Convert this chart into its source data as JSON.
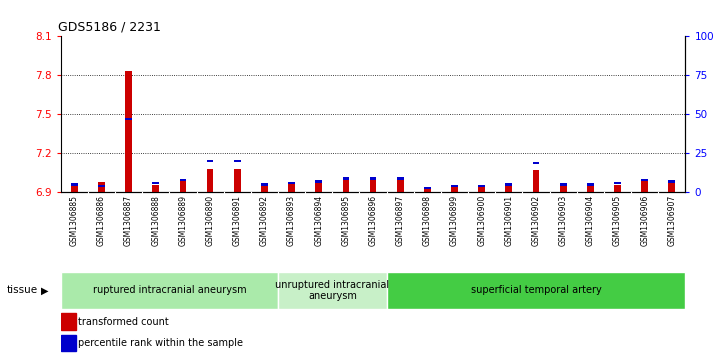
{
  "title": "GDS5186 / 2231",
  "samples": [
    "GSM1306885",
    "GSM1306886",
    "GSM1306887",
    "GSM1306888",
    "GSM1306889",
    "GSM1306890",
    "GSM1306891",
    "GSM1306892",
    "GSM1306893",
    "GSM1306894",
    "GSM1306895",
    "GSM1306896",
    "GSM1306897",
    "GSM1306898",
    "GSM1306899",
    "GSM1306900",
    "GSM1306901",
    "GSM1306902",
    "GSM1306903",
    "GSM1306904",
    "GSM1306905",
    "GSM1306906",
    "GSM1306907"
  ],
  "red_values": [
    6.97,
    6.98,
    7.83,
    6.96,
    6.99,
    7.08,
    7.08,
    6.96,
    6.97,
    6.98,
    7.0,
    7.01,
    7.0,
    6.93,
    6.94,
    6.94,
    6.95,
    7.07,
    6.96,
    6.96,
    6.96,
    6.99,
    6.99
  ],
  "blue_values": [
    5,
    4,
    47,
    6,
    8,
    20,
    20,
    5,
    6,
    7,
    9,
    9,
    9,
    3,
    4,
    4,
    5,
    19,
    5,
    5,
    6,
    8,
    7
  ],
  "y_min": 6.9,
  "y_max": 8.1,
  "y_ticks_left": [
    6.9,
    7.2,
    7.5,
    7.8,
    8.1
  ],
  "y_ticks_right": [
    0,
    25,
    50,
    75,
    100
  ],
  "groups": [
    {
      "label": "ruptured intracranial aneurysm",
      "start": 0,
      "end": 8,
      "color": "#aaeaaa"
    },
    {
      "label": "unruptured intracranial\naneurysm",
      "start": 8,
      "end": 12,
      "color": "#c8f0c8"
    },
    {
      "label": "superficial temporal artery",
      "start": 12,
      "end": 23,
      "color": "#44cc44"
    }
  ],
  "legend_items": [
    {
      "label": "transformed count",
      "color": "#cc0000"
    },
    {
      "label": "percentile rank within the sample",
      "color": "#0000cc"
    }
  ],
  "bar_color_red": "#cc0000",
  "bar_color_blue": "#0000cc",
  "tissue_label": "tissue",
  "bar_width": 0.25,
  "blue_bar_height": 0.018,
  "label_box_color": "#d8d8d8"
}
